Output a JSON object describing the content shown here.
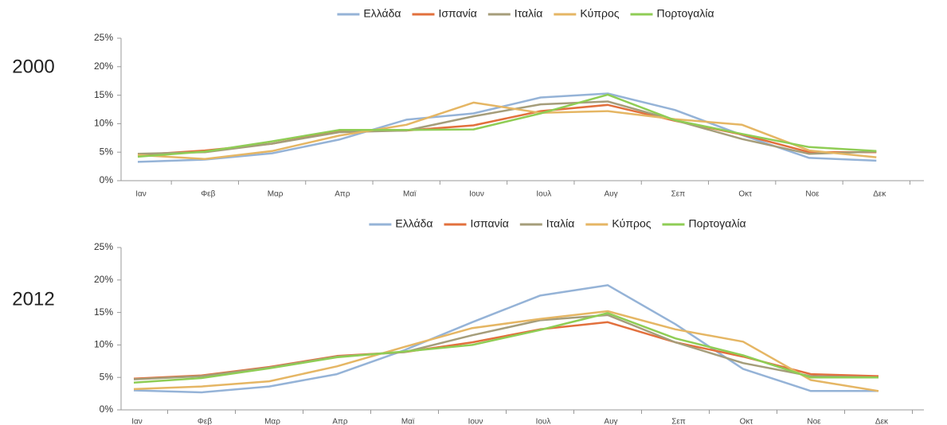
{
  "chart_data": [
    {
      "type": "line",
      "title": "2000",
      "categories": [
        "Ιαν",
        "Φεβ",
        "Μαρ",
        "Απρ",
        "Μαϊ",
        "Ιουν",
        "Ιουλ",
        "Αυγ",
        "Σεπ",
        "Οκτ",
        "Νοε",
        "Δεκ"
      ],
      "ylim": [
        0,
        25
      ],
      "yticks": [
        {
          "value": 0,
          "label": "0%"
        },
        {
          "value": 5,
          "label": "5%"
        },
        {
          "value": 10,
          "label": "10%"
        },
        {
          "value": 15,
          "label": "15%"
        },
        {
          "value": 20,
          "label": "20%"
        },
        {
          "value": 25,
          "label": "25%"
        }
      ],
      "grid": false,
      "legend": "top",
      "series": [
        {
          "name": "Ελλάδα",
          "color": "#95b3d7",
          "values": [
            3.3,
            3.7,
            4.8,
            7.2,
            10.7,
            11.8,
            14.6,
            15.3,
            12.4,
            8.0,
            4.0,
            3.5
          ]
        },
        {
          "name": "Ισπανία",
          "color": "#e2703d",
          "values": [
            4.5,
            5.3,
            6.5,
            8.7,
            8.8,
            9.7,
            12.2,
            13.3,
            10.5,
            8.1,
            5.0,
            5.0
          ]
        },
        {
          "name": "Ιταλία",
          "color": "#a59d7a",
          "values": [
            4.7,
            5.0,
            6.5,
            8.5,
            8.8,
            11.3,
            13.4,
            13.9,
            10.6,
            7.3,
            4.7,
            5.1
          ]
        },
        {
          "name": "Κύπρος",
          "color": "#e5b664",
          "values": [
            4.5,
            3.8,
            5.2,
            7.9,
            9.8,
            13.7,
            11.9,
            12.2,
            10.8,
            9.8,
            5.3,
            4.1
          ]
        },
        {
          "name": "Πορτογαλία",
          "color": "#8fcd55",
          "values": [
            4.2,
            5.1,
            6.9,
            8.9,
            8.9,
            9.0,
            11.8,
            15.1,
            10.6,
            8.2,
            5.9,
            5.2
          ]
        }
      ]
    },
    {
      "type": "line",
      "title": "2012",
      "categories": [
        "Ιαν",
        "Φεβ",
        "Μαρ",
        "Απρ",
        "Μαϊ",
        "Ιουν",
        "Ιουλ",
        "Αυγ",
        "Σεπ",
        "Οκτ",
        "Νοε",
        "Δεκ"
      ],
      "ylim": [
        0,
        25
      ],
      "yticks": [
        {
          "value": 0,
          "label": "0%"
        },
        {
          "value": 5,
          "label": "5%"
        },
        {
          "value": 10,
          "label": "10%"
        },
        {
          "value": 15,
          "label": "15%"
        },
        {
          "value": 20,
          "label": "20%"
        },
        {
          "value": 25,
          "label": "25%"
        }
      ],
      "grid": false,
      "legend": "top",
      "series": [
        {
          "name": "Ελλάδα",
          "color": "#95b3d7",
          "values": [
            3.0,
            2.7,
            3.6,
            5.5,
            9.2,
            13.5,
            17.6,
            19.2,
            13.2,
            6.3,
            2.9,
            2.9
          ]
        },
        {
          "name": "Ισπανία",
          "color": "#e2703d",
          "values": [
            4.8,
            5.3,
            6.6,
            8.3,
            8.9,
            10.4,
            12.4,
            13.5,
            10.4,
            8.2,
            5.5,
            5.2
          ]
        },
        {
          "name": "Ιταλία",
          "color": "#a59d7a",
          "values": [
            4.7,
            5.2,
            6.5,
            8.2,
            8.9,
            11.5,
            13.8,
            14.6,
            10.4,
            7.2,
            5.2,
            5.0
          ]
        },
        {
          "name": "Κύπρος",
          "color": "#e5b664",
          "values": [
            3.2,
            3.6,
            4.4,
            6.7,
            9.7,
            12.6,
            14.0,
            15.2,
            12.4,
            10.5,
            4.6,
            2.9
          ]
        },
        {
          "name": "Πορτογαλία",
          "color": "#8fcd55",
          "values": [
            4.2,
            4.9,
            6.4,
            8.1,
            9.0,
            10.0,
            12.3,
            14.9,
            11.0,
            8.4,
            5.0,
            5.0
          ]
        }
      ]
    }
  ]
}
